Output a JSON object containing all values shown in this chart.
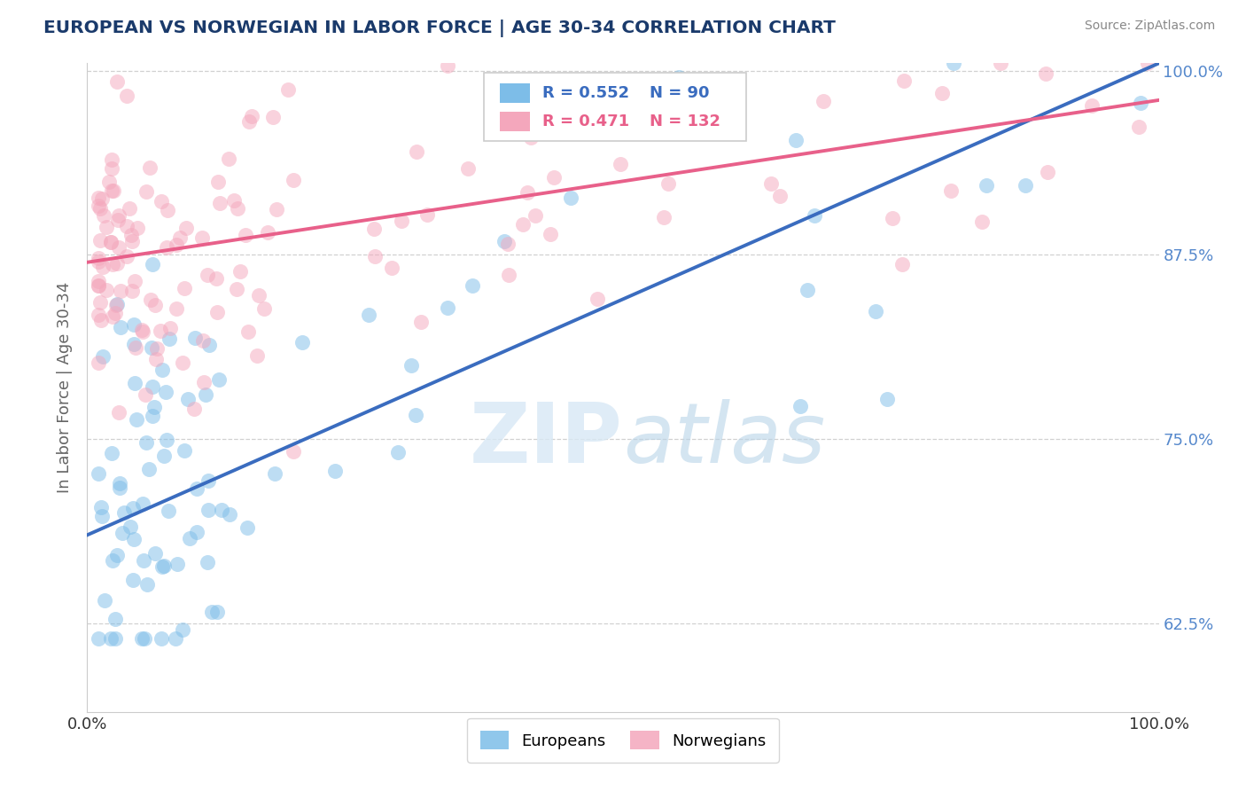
{
  "title": "EUROPEAN VS NORWEGIAN IN LABOR FORCE | AGE 30-34 CORRELATION CHART",
  "source": "Source: ZipAtlas.com",
  "ylabel": "In Labor Force | Age 30-34",
  "xlim": [
    0.0,
    1.0
  ],
  "ylim": [
    0.565,
    1.005
  ],
  "yticks": [
    0.625,
    0.75,
    0.875,
    1.0
  ],
  "ytick_labels": [
    "62.5%",
    "75.0%",
    "87.5%",
    "100.0%"
  ],
  "xtick_labels": [
    "0.0%",
    "100.0%"
  ],
  "xticks": [
    0.0,
    1.0
  ],
  "europeans_R": 0.552,
  "europeans_N": 90,
  "norwegians_R": 0.471,
  "norwegians_N": 132,
  "blue_color": "#7dbde8",
  "pink_color": "#f4a7bc",
  "blue_line_color": "#3a6cbf",
  "pink_line_color": "#e8608a",
  "legend_blue_label": "Europeans",
  "legend_pink_label": "Norwegians",
  "watermark": "ZIPatlas",
  "background_color": "#ffffff",
  "grid_color": "#cccccc",
  "title_color": "#1a3a6b",
  "axis_label_color": "#666666",
  "right_label_color": "#5588cc",
  "eu_line_y0": 0.685,
  "eu_line_y1": 1.005,
  "no_line_y0": 0.87,
  "no_line_y1": 0.98,
  "seed_eu": 42,
  "seed_no": 99
}
